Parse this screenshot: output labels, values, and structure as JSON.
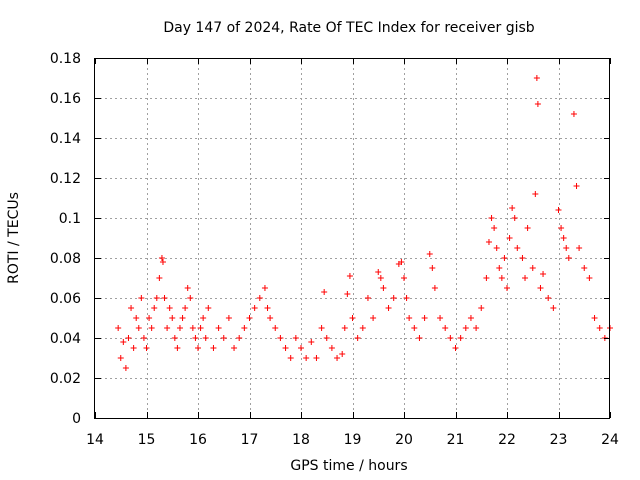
{
  "chart_data": {
    "type": "scatter",
    "title": "Day 147 of 2024, Rate Of TEC Index for receiver gisb",
    "xlabel": "GPS time / hours",
    "ylabel": "ROTI / TECUs",
    "xlim": [
      14,
      24
    ],
    "ylim": [
      0,
      0.18
    ],
    "x_ticks": [
      14,
      15,
      16,
      17,
      18,
      19,
      20,
      21,
      22,
      23,
      24
    ],
    "x_tick_labels": [
      "14",
      "15",
      "16",
      "17",
      "18",
      "19",
      "20",
      "21",
      "22",
      "23",
      "24"
    ],
    "y_ticks": [
      0,
      0.02,
      0.04,
      0.06,
      0.08,
      0.1,
      0.12,
      0.14,
      0.16,
      0.18
    ],
    "y_tick_labels": [
      "0",
      "0.02",
      "0.04",
      "0.06",
      "0.08",
      "0.1",
      "0.12",
      "0.14",
      "0.16",
      "0.18"
    ],
    "grid": true,
    "marker": "+",
    "marker_color": "#ff0000",
    "series": [
      {
        "name": "ROTI",
        "x": [
          14.45,
          14.5,
          14.55,
          14.6,
          14.65,
          14.7,
          14.75,
          14.8,
          14.85,
          14.9,
          14.95,
          15.0,
          15.05,
          15.1,
          15.15,
          15.2,
          15.25,
          15.3,
          15.32,
          15.35,
          15.4,
          15.45,
          15.5,
          15.55,
          15.6,
          15.65,
          15.7,
          15.75,
          15.8,
          15.85,
          15.9,
          15.95,
          16.0,
          16.05,
          16.1,
          16.15,
          16.2,
          16.3,
          16.4,
          16.5,
          16.6,
          16.7,
          16.8,
          16.9,
          17.0,
          17.1,
          17.2,
          17.3,
          17.35,
          17.4,
          17.5,
          17.6,
          17.7,
          17.8,
          17.9,
          18.0,
          18.1,
          18.2,
          18.3,
          18.4,
          18.45,
          18.5,
          18.6,
          18.7,
          18.8,
          18.85,
          18.9,
          18.95,
          19.0,
          19.1,
          19.2,
          19.3,
          19.4,
          19.5,
          19.55,
          19.6,
          19.7,
          19.8,
          19.9,
          19.95,
          20.0,
          20.05,
          20.1,
          20.2,
          20.3,
          20.4,
          20.5,
          20.55,
          20.6,
          20.7,
          20.8,
          20.9,
          21.0,
          21.1,
          21.2,
          21.3,
          21.4,
          21.5,
          21.6,
          21.65,
          21.7,
          21.75,
          21.8,
          21.85,
          21.9,
          21.95,
          22.0,
          22.05,
          22.1,
          22.15,
          22.2,
          22.3,
          22.35,
          22.4,
          22.5,
          22.55,
          22.58,
          22.6,
          22.65,
          22.7,
          22.8,
          22.9,
          23.0,
          23.05,
          23.1,
          23.15,
          23.2,
          23.3,
          23.35,
          23.4,
          23.5,
          23.6,
          23.7,
          23.8,
          23.9,
          24.0
        ],
        "y": [
          0.045,
          0.03,
          0.038,
          0.025,
          0.04,
          0.055,
          0.035,
          0.05,
          0.045,
          0.06,
          0.04,
          0.035,
          0.05,
          0.045,
          0.055,
          0.06,
          0.07,
          0.08,
          0.078,
          0.06,
          0.045,
          0.055,
          0.05,
          0.04,
          0.035,
          0.045,
          0.05,
          0.055,
          0.065,
          0.06,
          0.045,
          0.04,
          0.035,
          0.045,
          0.05,
          0.04,
          0.055,
          0.035,
          0.045,
          0.04,
          0.05,
          0.035,
          0.04,
          0.045,
          0.05,
          0.055,
          0.06,
          0.065,
          0.055,
          0.05,
          0.045,
          0.04,
          0.035,
          0.03,
          0.04,
          0.035,
          0.03,
          0.038,
          0.03,
          0.045,
          0.063,
          0.04,
          0.035,
          0.03,
          0.032,
          0.045,
          0.062,
          0.071,
          0.05,
          0.04,
          0.045,
          0.06,
          0.05,
          0.073,
          0.07,
          0.065,
          0.055,
          0.06,
          0.077,
          0.078,
          0.07,
          0.06,
          0.05,
          0.045,
          0.04,
          0.05,
          0.082,
          0.075,
          0.065,
          0.05,
          0.045,
          0.04,
          0.035,
          0.04,
          0.045,
          0.05,
          0.045,
          0.055,
          0.07,
          0.088,
          0.1,
          0.095,
          0.085,
          0.075,
          0.07,
          0.08,
          0.065,
          0.09,
          0.105,
          0.1,
          0.085,
          0.08,
          0.07,
          0.095,
          0.075,
          0.112,
          0.17,
          0.157,
          0.065,
          0.072,
          0.06,
          0.055,
          0.104,
          0.095,
          0.09,
          0.085,
          0.08,
          0.152,
          0.116,
          0.085,
          0.075,
          0.07,
          0.05,
          0.045,
          0.04,
          0.045
        ]
      }
    ]
  }
}
